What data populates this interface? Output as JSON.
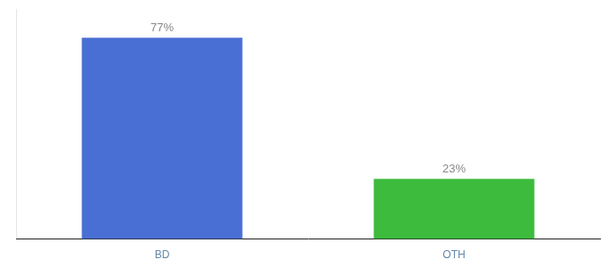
{
  "chart_data": {
    "type": "bar",
    "categories": [
      "BD",
      "OTH"
    ],
    "values": [
      77,
      23
    ],
    "value_labels": [
      "77%",
      "23%"
    ],
    "data_labels": true,
    "colors": [
      "#4a6fd4",
      "#3dbb3d"
    ],
    "ylim": [
      0,
      88
    ],
    "tick_labels": "x",
    "grid": false
  }
}
